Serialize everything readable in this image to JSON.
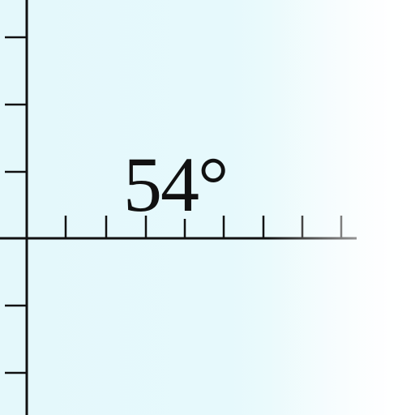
{
  "map": {
    "latitude_label": "54°",
    "ink_color": "#111111",
    "water_color": "#e4f8fb"
  }
}
